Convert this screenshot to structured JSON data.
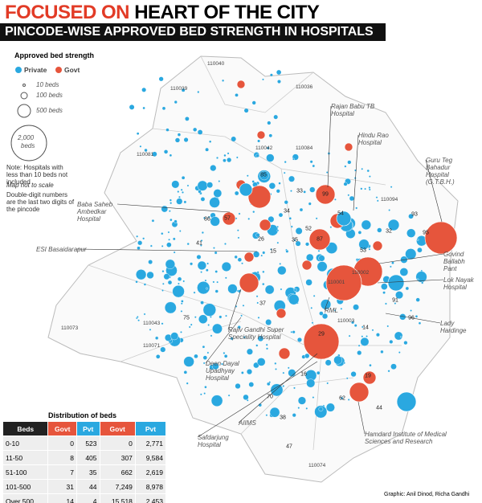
{
  "header": {
    "title_prefix": "FOCUSED ON",
    "title_rest": "HEART OF THE CITY",
    "subtitle": "PINCODE-WISE APPROVED BED STRENGTH IN HOSPITALS"
  },
  "legend": {
    "title": "Approved bed strength",
    "items": [
      "Private",
      "Govt"
    ],
    "sizes": [
      "10 beds",
      "100 beds",
      "500 beds"
    ],
    "big_size": [
      "2,000",
      "beds"
    ]
  },
  "notes": [
    "Note: Hospitals with less than 10 beds not included",
    "Map not to scale",
    "Double-digit numbers are the last two digits of the pincode"
  ],
  "hospitals": [
    "Rajan Babu TB Hospital",
    "Hindu Rao Hospital",
    "Guru Teg Bahadur Hospital (G.T.B.H.)",
    "Baba Saheb Ambedkar Hospital",
    "ESI Basaidarapur",
    "Govind Ballabh Pant",
    "Lok Nayak Hospital",
    "RML",
    "Lady Hardinge",
    "Rajiv Gandhi Super Speciality Hospital",
    "Deen Dayal Upadhyay Hospital",
    "AIIMS",
    "Safdarjung Hospital",
    "Hamdard Institute of Medical Sciences and Research"
  ],
  "pincodes": [
    "110040",
    "110039",
    "110036",
    "110081",
    "110042",
    "110084",
    "110094",
    "110073",
    "110043",
    "110071",
    "110003",
    "110074",
    "110001",
    "110002"
  ],
  "bubble_labels": [
    "85",
    "99",
    "33",
    "54",
    "52",
    "87",
    "34",
    "57",
    "86",
    "41",
    "26",
    "15",
    "35",
    "32",
    "93",
    "95",
    "53",
    "91",
    "96",
    "29",
    "14",
    "37",
    "19",
    "16",
    "62",
    "70",
    "38",
    "44",
    "47",
    "75"
  ],
  "table": {
    "title": "Distribution of beds",
    "columns": [
      "Beds",
      "Govt",
      "Pvt",
      "Govt",
      "Pvt"
    ],
    "rows": [
      [
        "0-10",
        "0",
        "523",
        "0",
        "2,771"
      ],
      [
        "11-50",
        "8",
        "405",
        "307",
        "9,584"
      ],
      [
        "51-100",
        "7",
        "35",
        "662",
        "2,619"
      ],
      [
        "101-500",
        "31",
        "44",
        "7,249",
        "8,978"
      ],
      [
        "Over 500",
        "14",
        "4",
        "15,518",
        "2,453"
      ]
    ]
  },
  "credit": "Graphic: Anil Dinod, Richa Gandhi"
}
